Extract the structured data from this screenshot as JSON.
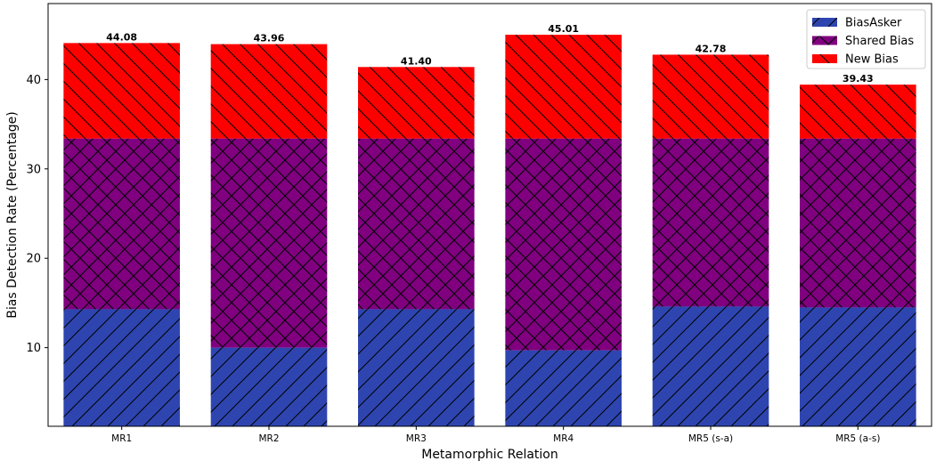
{
  "chart_data": {
    "type": "bar",
    "stacked": true,
    "categories": [
      "MR1",
      "MR2",
      "MR3",
      "MR4",
      "MR5 (s-a)",
      "MR5 (a-s)"
    ],
    "series": [
      {
        "name": "BiasAsker",
        "values": [
          14.3,
          10.0,
          14.3,
          9.7,
          14.6,
          14.5
        ],
        "color": "#2e45b0",
        "hatch": "diagonal-up"
      },
      {
        "name": "Shared Bias",
        "values": [
          19.1,
          23.4,
          19.1,
          23.7,
          18.8,
          18.9
        ],
        "color": "#800080",
        "hatch": "crosshatch"
      },
      {
        "name": "New Bias",
        "values": [
          10.68,
          10.56,
          8.0,
          11.61,
          9.38,
          6.03
        ],
        "color": "#ff0000",
        "hatch": "diagonal-down"
      }
    ],
    "totals": [
      "44.08",
      "43.96",
      "41.40",
      "45.01",
      "42.78",
      "39.43"
    ],
    "xlabel": "Metamorphic Relation",
    "ylabel": "Bias Detection Rate (Percentage)",
    "ylim": [
      1.2,
      48.5
    ],
    "yticks": [
      10,
      20,
      30,
      40
    ],
    "legend_position": "top-right",
    "grid": false
  }
}
